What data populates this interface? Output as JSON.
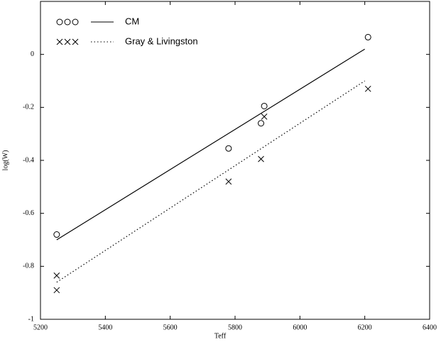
{
  "chart_data": {
    "type": "scatter",
    "xlabel": "Teff",
    "ylabel": "log(W)",
    "xlim": [
      5200,
      6400
    ],
    "xticks": [
      5200,
      5400,
      5600,
      5800,
      6000,
      6200,
      6400
    ],
    "ylim": [
      -1,
      0.2
    ],
    "yticks": [
      -1,
      -0.8,
      -0.6,
      -0.4,
      -0.2,
      0
    ],
    "series": [
      {
        "name": "CM",
        "color": "#000000",
        "marker": "circle",
        "line": "solid",
        "x": [
          5250,
          5780,
          5880,
          5890,
          6210
        ],
        "values": [
          -0.68,
          -0.355,
          -0.26,
          -0.195,
          0.065
        ],
        "fit": {
          "x": [
            5250,
            6200
          ],
          "values": [
            -0.7,
            0.02
          ]
        }
      },
      {
        "name": "Gray & Livingston",
        "color": "#000000",
        "marker": "cross",
        "line": "dotted",
        "x": [
          5250,
          5250,
          5780,
          5880,
          5890,
          6210
        ],
        "values": [
          -0.835,
          -0.89,
          -0.48,
          -0.395,
          -0.235,
          -0.13
        ],
        "fit": {
          "x": [
            5250,
            6200
          ],
          "values": [
            -0.86,
            -0.1
          ]
        }
      }
    ]
  }
}
